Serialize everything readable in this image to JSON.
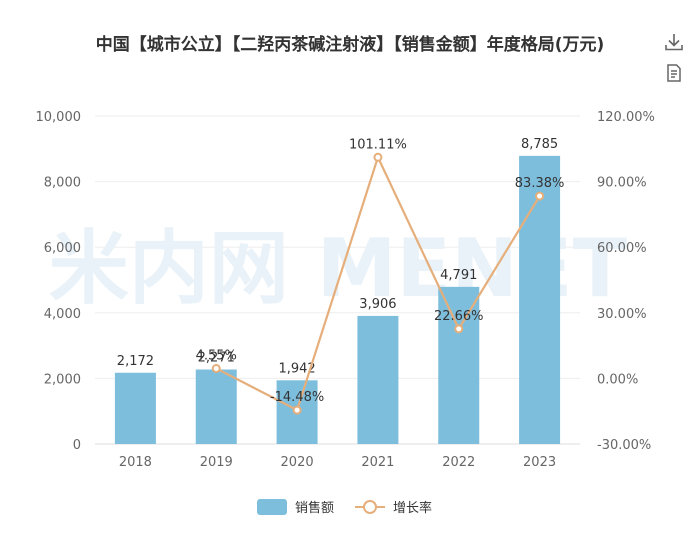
{
  "title": "中国【城市公立】【二羟丙茶碱注射液】【销售金额】年度格局(万元)",
  "toolbar": {
    "download_icon": "download-icon",
    "data_view_icon": "document-icon"
  },
  "colors": {
    "bar": "#7ebedd",
    "line": "#e5ae7a",
    "axis_text": "#666666",
    "grid": "#eeeeee",
    "watermark": "#e9f2f8"
  },
  "watermark": "米内网 MENET",
  "chart_data": {
    "type": "bar",
    "categories": [
      "2018",
      "2019",
      "2020",
      "2021",
      "2022",
      "2023"
    ],
    "series": [
      {
        "name": "销售额",
        "type": "bar",
        "axis": "left",
        "values": [
          2172,
          2271,
          1942,
          3906,
          4791,
          8785
        ],
        "labels": [
          "2,172",
          "2,271",
          "1,942",
          "3,906",
          "4,791",
          "8,785"
        ]
      },
      {
        "name": "增长率",
        "type": "line",
        "axis": "right",
        "values": [
          null,
          4.55,
          -14.48,
          101.11,
          22.66,
          83.38
        ],
        "labels": [
          "",
          "4.55%",
          "-14.48%",
          "101.11%",
          "22.66%",
          "83.38%"
        ]
      }
    ],
    "y_left": {
      "min": 0,
      "max": 10000,
      "ticks": [
        0,
        2000,
        4000,
        6000,
        8000,
        10000
      ],
      "tick_labels": [
        "0",
        "2,000",
        "4,000",
        "6,000",
        "8,000",
        "10,000"
      ]
    },
    "y_right": {
      "min": -30,
      "max": 120,
      "ticks": [
        -30,
        0,
        30,
        60,
        90,
        120
      ],
      "tick_labels": [
        "-30.00%",
        "0.00%",
        "30.00%",
        "60.00%",
        "90.00%",
        "120.00%"
      ]
    },
    "legend": {
      "position": "bottom",
      "items": [
        "销售额",
        "增长率"
      ]
    },
    "grid": true
  }
}
